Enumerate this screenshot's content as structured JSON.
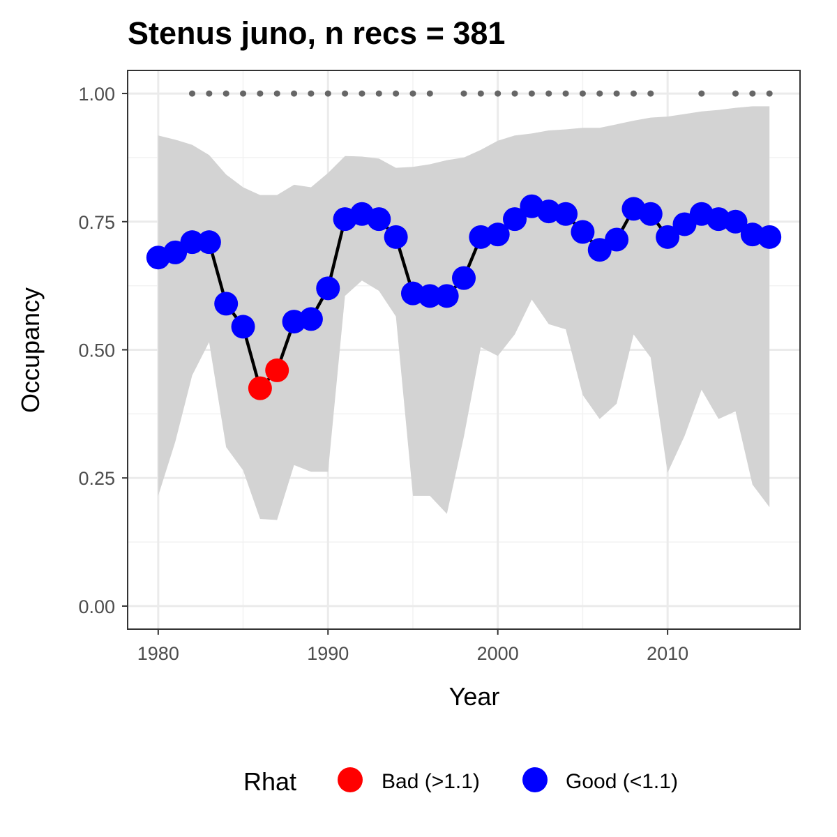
{
  "chart_data": {
    "type": "line",
    "title": "Stenus juno, n recs = 381",
    "xlabel": "Year",
    "ylabel": "Occupancy",
    "xlim": [
      1978.2,
      2017.8
    ],
    "ylim": [
      -0.045,
      1.045
    ],
    "x_ticks": [
      1980,
      1990,
      2000,
      2010
    ],
    "x_tick_labels": [
      "1980",
      "1990",
      "2000",
      "2010"
    ],
    "y_ticks": [
      0,
      0.25,
      0.5,
      0.75,
      1.0
    ],
    "y_tick_labels": [
      "0.00",
      "0.25",
      "0.50",
      "0.75",
      "1.00"
    ],
    "grid": true,
    "legend_position": "bottom",
    "legend": {
      "title": "Rhat",
      "entries": [
        {
          "label": "Bad (>1.1)",
          "color": "#ff0000"
        },
        {
          "label": "Good (<1.1)",
          "color": "#0000ff"
        }
      ]
    },
    "colors": {
      "bad": "#ff0000",
      "good": "#0000ff",
      "line": "#000000",
      "ribbon": "#d3d3d3",
      "record_dots": "#666666"
    },
    "x": [
      1980,
      1981,
      1982,
      1983,
      1984,
      1985,
      1986,
      1987,
      1988,
      1989,
      1990,
      1991,
      1992,
      1993,
      1994,
      1995,
      1996,
      1997,
      1998,
      1999,
      2000,
      2001,
      2002,
      2003,
      2004,
      2005,
      2006,
      2007,
      2008,
      2009,
      2010,
      2011,
      2012,
      2013,
      2014,
      2015,
      2016
    ],
    "occupancy": [
      0.68,
      0.69,
      0.71,
      0.71,
      0.59,
      0.545,
      0.425,
      0.46,
      0.555,
      0.56,
      0.62,
      0.755,
      0.765,
      0.755,
      0.72,
      0.61,
      0.605,
      0.605,
      0.64,
      0.72,
      0.725,
      0.755,
      0.78,
      0.77,
      0.765,
      0.73,
      0.695,
      0.715,
      0.775,
      0.765,
      0.72,
      0.745,
      0.765,
      0.755,
      0.75,
      0.725,
      0.72
    ],
    "rhat_status": [
      "good",
      "good",
      "good",
      "good",
      "good",
      "good",
      "bad",
      "bad",
      "good",
      "good",
      "good",
      "good",
      "good",
      "good",
      "good",
      "good",
      "good",
      "good",
      "good",
      "good",
      "good",
      "good",
      "good",
      "good",
      "good",
      "good",
      "good",
      "good",
      "good",
      "good",
      "good",
      "good",
      "good",
      "good",
      "good",
      "good",
      "good"
    ],
    "lower_ci": [
      0.215,
      0.32,
      0.45,
      0.515,
      0.31,
      0.265,
      0.17,
      0.168,
      0.275,
      0.262,
      0.262,
      0.605,
      0.635,
      0.615,
      0.565,
      0.215,
      0.215,
      0.18,
      0.33,
      0.505,
      0.488,
      0.53,
      0.598,
      0.55,
      0.54,
      0.412,
      0.365,
      0.395,
      0.53,
      0.485,
      0.26,
      0.332,
      0.422,
      0.365,
      0.38,
      0.237,
      0.193
    ],
    "upper_ci": [
      0.918,
      0.91,
      0.9,
      0.88,
      0.842,
      0.817,
      0.802,
      0.802,
      0.822,
      0.817,
      0.845,
      0.878,
      0.877,
      0.873,
      0.855,
      0.857,
      0.862,
      0.87,
      0.875,
      0.89,
      0.908,
      0.918,
      0.922,
      0.928,
      0.93,
      0.933,
      0.933,
      0.94,
      0.947,
      0.953,
      0.955,
      0.96,
      0.965,
      0.968,
      0.972,
      0.975,
      0.975
    ],
    "record_years": [
      1982,
      1983,
      1984,
      1985,
      1986,
      1987,
      1988,
      1989,
      1990,
      1991,
      1992,
      1993,
      1994,
      1995,
      1996,
      1998,
      1999,
      2000,
      2001,
      2002,
      2003,
      2004,
      2005,
      2006,
      2007,
      2008,
      2009,
      2012,
      2014,
      2015,
      2016
    ],
    "record_marker_y": 1.0
  }
}
